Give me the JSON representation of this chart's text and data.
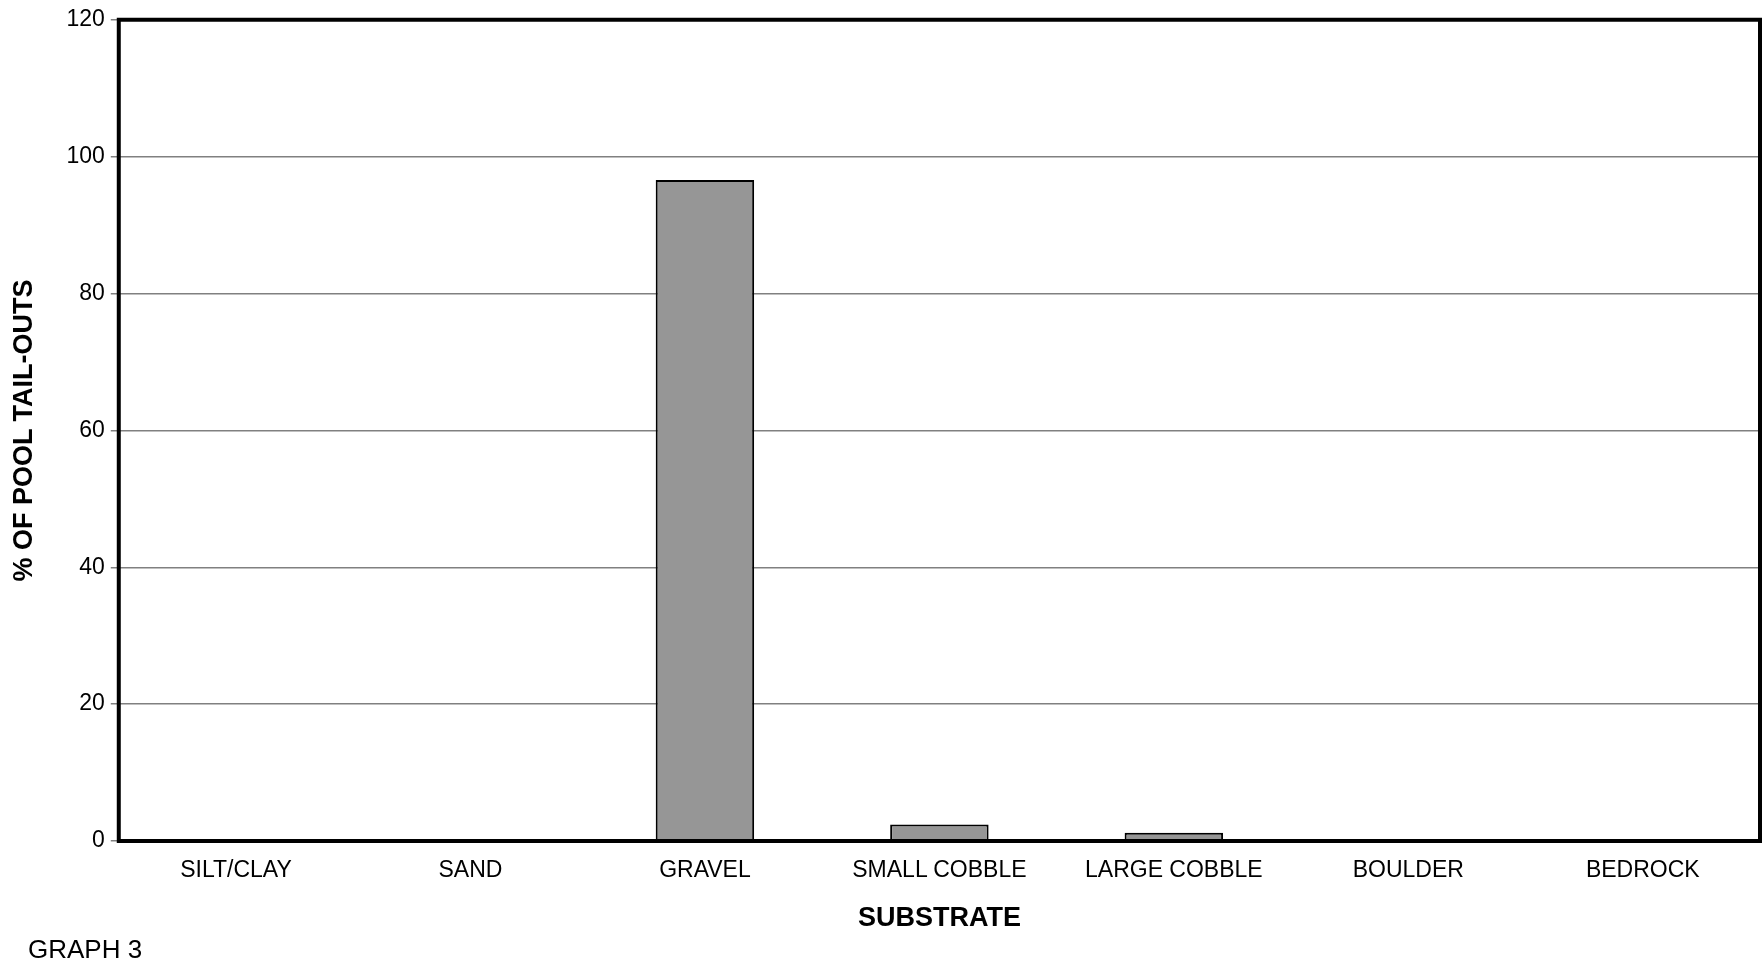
{
  "chart_data": {
    "type": "bar",
    "xlabel": "SUBSTRATE",
    "ylabel": "% OF POOL TAIL-OUTS",
    "categories": [
      "SILT/CLAY",
      "SAND",
      "GRAVEL",
      "SMALL COBBLE",
      "LARGE COBBLE",
      "BOULDER",
      "BEDROCK"
    ],
    "values": [
      0,
      0,
      96.6,
      2.4,
      1.2,
      0,
      0
    ],
    "color": "#969696",
    "ylim": [
      0,
      120
    ],
    "yticks": [
      0,
      20,
      40,
      60,
      80,
      100,
      120
    ],
    "grid": "y",
    "legend": false,
    "annotations": [
      "GRAPH 3"
    ]
  }
}
